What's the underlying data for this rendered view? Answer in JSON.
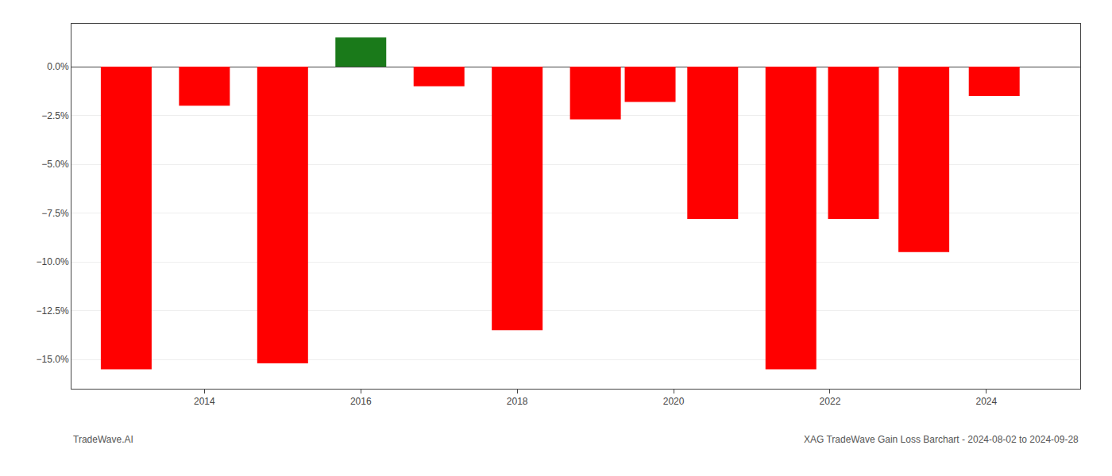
{
  "chart_data": {
    "type": "bar",
    "x": [
      2013,
      2014,
      2015,
      2016,
      2017,
      2018,
      2019,
      2019.7,
      2020.5,
      2021.5,
      2022.3,
      2023.2,
      2024.1
    ],
    "values": [
      -15.5,
      -2.0,
      -15.2,
      1.5,
      -1.0,
      -13.5,
      -2.7,
      -1.8,
      -7.8,
      -15.5,
      -7.8,
      -9.5,
      -1.5
    ],
    "colors": [
      "#ff0000",
      "#ff0000",
      "#ff0000",
      "#1a7a1a",
      "#ff0000",
      "#ff0000",
      "#ff0000",
      "#ff0000",
      "#ff0000",
      "#ff0000",
      "#ff0000",
      "#ff0000",
      "#ff0000"
    ],
    "xlim": [
      2012.3,
      2025.2
    ],
    "xticks": [
      2014,
      2016,
      2018,
      2020,
      2022,
      2024
    ],
    "ylim": [
      -16.5,
      2.2
    ],
    "yticks": [
      {
        "value": 0.0,
        "label": "0.0%"
      },
      {
        "value": -2.5,
        "label": "−2.5%"
      },
      {
        "value": -5.0,
        "label": "−5.0%"
      },
      {
        "value": -7.5,
        "label": "−7.5%"
      },
      {
        "value": -10.0,
        "label": "−10.0%"
      },
      {
        "value": -12.5,
        "label": "−12.5%"
      },
      {
        "value": -15.0,
        "label": "−15.0%"
      }
    ],
    "grid": true,
    "annotations": [
      "TradeWave.AI",
      "XAG TradeWave Gain Loss Barchart - 2024-08-02 to 2024-09-28"
    ]
  }
}
